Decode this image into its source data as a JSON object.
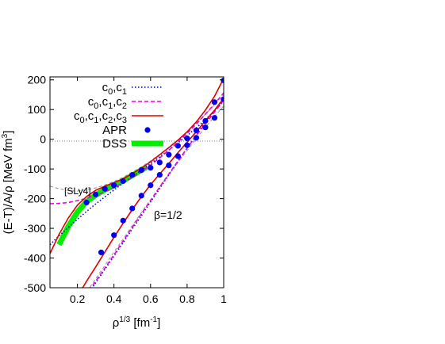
{
  "chart_data": {
    "type": "line",
    "xlabel": "ρ<sup>1/3</sup> [fm<sup>-1</sup>]",
    "xlabel_parts": {
      "base": "ρ",
      "exp": "1/3",
      "unit_open": " [fm",
      "unit_exp": "-1",
      "unit_close": "]"
    },
    "ylabel_parts": {
      "base": "(E-T)/A/ρ [MeV fm",
      "exp": "3",
      "close": "]"
    },
    "xlim": [
      0.05,
      1.0
    ],
    "ylim": [
      -500,
      210
    ],
    "xticks": [
      0.2,
      0.4,
      0.6,
      0.8,
      1.0
    ],
    "xtick_labels": [
      "0.2",
      "0.4",
      "0.6",
      "0.8",
      "1"
    ],
    "yticks": [
      -500,
      -400,
      -300,
      -200,
      -100,
      0,
      100,
      200
    ],
    "ytick_labels": [
      "-500",
      "-400",
      "-300",
      "-200",
      "-100",
      "0",
      "100",
      "200"
    ],
    "annotations": [
      {
        "text": "[SLy4]",
        "x": 0.18,
        "y": -162
      },
      {
        "text": "β=1/2",
        "x": 0.7,
        "y": -262
      }
    ],
    "legend_position": "top-right",
    "series": [
      {
        "name": "c0,c1",
        "label_parts": [
          "c",
          "0",
          ",c",
          "1"
        ],
        "style": "dotted",
        "color": "#0000cc",
        "curves": [
          {
            "x": [
              0.05,
              0.1,
              0.15,
              0.2,
              0.25,
              0.3,
              0.35,
              0.4,
              0.45,
              0.5,
              0.55,
              0.6,
              0.65,
              0.7,
              0.75,
              0.8,
              0.85,
              0.9,
              0.95,
              1.0
            ],
            "y": [
              -355,
              -325,
              -297,
              -270,
              -243,
              -218,
              -194,
              -171,
              -148,
              -126,
              -104,
              -82,
              -59,
              -36,
              -12,
              12,
              38,
              66,
              96,
              128
            ]
          },
          {
            "x": [
              0.2,
              0.25,
              0.3,
              0.35,
              0.4,
              0.45,
              0.5,
              0.55,
              0.6,
              0.65,
              0.7,
              0.75,
              0.8,
              0.85,
              0.9,
              0.95,
              1.0
            ],
            "y": [
              -575,
              -528,
              -483,
              -438,
              -393,
              -348,
              -302,
              -257,
              -211,
              -166,
              -120,
              -74,
              -30,
              14,
              57,
              98,
              138
            ]
          }
        ]
      },
      {
        "name": "c0,c1,c2",
        "label_parts": [
          "c",
          "0",
          ",c",
          "1",
          ",c",
          "2"
        ],
        "style": "dashed",
        "color": "#ee00ee",
        "curves": [
          {
            "x": [
              0.05,
              0.1,
              0.15,
              0.2,
              0.25,
              0.3,
              0.35,
              0.4,
              0.45,
              0.5,
              0.55,
              0.6,
              0.65,
              0.7,
              0.75,
              0.8,
              0.85,
              0.9,
              0.95,
              1.0
            ],
            "y": [
              -217,
              -216,
              -213,
              -207,
              -199,
              -189,
              -177,
              -163,
              -147,
              -129,
              -109,
              -87,
              -63,
              -37,
              -9,
              20,
              51,
              84,
              119,
              156
            ]
          },
          {
            "x": [
              0.2,
              0.25,
              0.3,
              0.35,
              0.4,
              0.45,
              0.5,
              0.55,
              0.6,
              0.65,
              0.7,
              0.75,
              0.8,
              0.85,
              0.9,
              0.95,
              1.0
            ],
            "y": [
              -560,
              -520,
              -478,
              -434,
              -389,
              -343,
              -297,
              -251,
              -206,
              -161,
              -117,
              -73,
              -30,
              12,
              52,
              92,
              132
            ]
          }
        ]
      },
      {
        "name": "c0,c1,c2,c3",
        "label_parts": [
          "c",
          "0",
          ",c",
          "1",
          ",c",
          "2",
          ",c",
          "3"
        ],
        "style": "solid",
        "color": "#dd0000",
        "curves": [
          {
            "x": [
              0.05,
              0.1,
              0.15,
              0.2,
              0.25,
              0.3,
              0.35,
              0.4,
              0.45,
              0.5,
              0.55,
              0.6,
              0.65,
              0.7,
              0.75,
              0.8,
              0.85,
              0.9,
              0.95,
              1.0
            ],
            "y": [
              -385,
              -320,
              -265,
              -222,
              -193,
              -172,
              -158,
              -146,
              -133,
              -116,
              -97,
              -76,
              -52,
              -28,
              -3,
              25,
              58,
              98,
              145,
              205
            ]
          },
          {
            "x": [
              0.2,
              0.25,
              0.3,
              0.35,
              0.4,
              0.45,
              0.5,
              0.55,
              0.6,
              0.65,
              0.7,
              0.75,
              0.8,
              0.85,
              0.9,
              0.95,
              1.0
            ],
            "y": [
              -530,
              -478,
              -430,
              -380,
              -330,
              -283,
              -237,
              -193,
              -153,
              -117,
              -82,
              -45,
              -10,
              25,
              62,
              98,
              138
            ]
          }
        ]
      },
      {
        "name": "APR",
        "label_parts": [
          "APR"
        ],
        "style": "markers",
        "color": "#0000ee",
        "curves": [
          {
            "x": [
              0.25,
              0.3,
              0.35,
              0.4,
              0.45,
              0.5,
              0.55,
              0.6,
              0.65,
              0.7,
              0.75,
              0.8,
              0.85,
              0.9,
              0.95,
              1.0
            ],
            "y": [
              -213,
              -186,
              -167,
              -155,
              -141,
              -120,
              -104,
              -96,
              -78,
              -52,
              -22,
              3,
              30,
              62,
              125,
              198
            ]
          },
          {
            "x": [
              0.33,
              0.4,
              0.45,
              0.5,
              0.55,
              0.6,
              0.65,
              0.7,
              0.75,
              0.8,
              0.85,
              0.9,
              0.95,
              1.0
            ],
            "y": [
              -381,
              -323,
              -274,
              -233,
              -190,
              -155,
              -120,
              -88,
              -57,
              -20,
              5,
              40,
              72,
              135
            ]
          }
        ]
      },
      {
        "name": "DSS",
        "label_parts": [
          "DSS"
        ],
        "style": "band",
        "color": "#00ee00",
        "curves": [
          {
            "x": [
              0.1,
              0.15,
              0.2,
              0.25,
              0.3,
              0.35,
              0.4,
              0.45,
              0.5,
              0.55,
              0.58
            ],
            "y": [
              -355,
              -294,
              -245,
              -210,
              -188,
              -170,
              -156,
              -140,
              -122,
              -104,
              -93
            ]
          }
        ]
      },
      {
        "name": "SLy4",
        "label_parts": [
          "SLy4"
        ],
        "style": "dashed-thin",
        "color": "#999999",
        "curves": [
          {
            "x": [
              0.05,
              0.1,
              0.15,
              0.2,
              0.25,
              0.3,
              0.35,
              0.4,
              0.45,
              0.5,
              0.55,
              0.6,
              0.65,
              0.7,
              0.75,
              0.8,
              0.85,
              0.9,
              0.95,
              1.0
            ],
            "y": [
              -158,
              -167,
              -173,
              -174,
              -171,
              -164,
              -154,
              -142,
              -128,
              -111,
              -93,
              -73,
              -51,
              -27,
              -2,
              25,
              54,
              84,
              116,
              150
            ]
          },
          {
            "x": [
              0.2,
              0.25,
              0.3,
              0.35,
              0.4,
              0.45,
              0.5,
              0.55,
              0.6,
              0.65,
              0.7,
              0.75,
              0.8,
              0.85,
              0.9,
              0.95,
              1.0
            ],
            "y": [
              -560,
              -515,
              -470,
              -425,
              -380,
              -336,
              -291,
              -247,
              -204,
              -161,
              -119,
              -78,
              -38,
              2,
              40,
              77,
              112
            ]
          }
        ]
      }
    ]
  }
}
